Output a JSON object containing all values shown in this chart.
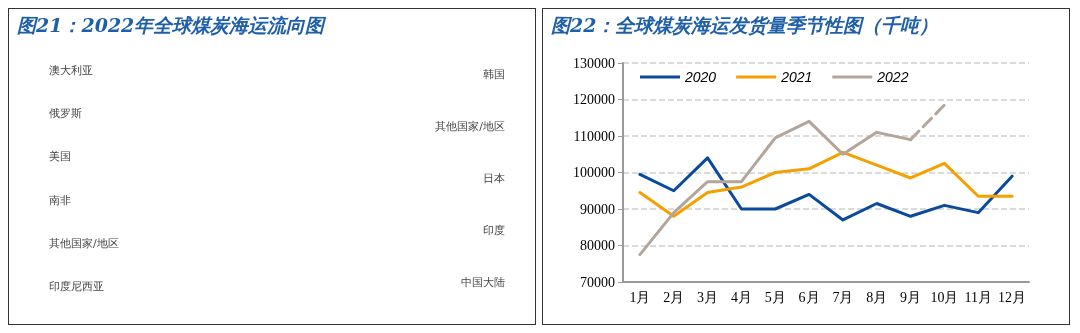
{
  "chart_data": [
    {
      "type": "other",
      "title": "图21：2022年全球煤炭海运流向图",
      "categories": [
        "澳大利亚",
        "俄罗斯",
        "美国",
        "南非",
        "其他国家/地区",
        "印度尼西亚"
      ],
      "y2_categories": [
        "韩国",
        "其他国家/地区",
        "日本",
        "印度",
        "中国大陆"
      ]
    },
    {
      "type": "line",
      "title": "图22：全球煤炭海运发货量季节性图（千吨）",
      "categories": [
        "1月",
        "2月",
        "3月",
        "4月",
        "5月",
        "6月",
        "7月",
        "8月",
        "9月",
        "10月",
        "11月",
        "12月"
      ],
      "series": [
        {
          "name": "2020",
          "color": "#0a4a9c",
          "values": [
            99500,
            95000,
            104000,
            90000,
            90000,
            94000,
            87000,
            91500,
            88000,
            91000,
            89000,
            99000
          ]
        },
        {
          "name": "2021",
          "color": "#f5a000",
          "values": [
            94500,
            88000,
            94500,
            96000,
            100000,
            101000,
            105500,
            102000,
            98500,
            102500,
            93500,
            93500
          ]
        },
        {
          "name": "2022",
          "color": "#b3a59b",
          "values": [
            77500,
            89000,
            97500,
            97500,
            109500,
            114000,
            105000,
            111000,
            109000,
            null,
            null,
            null
          ]
        },
        {
          "color": "#b3a59b",
          "line_style": "dashed",
          "values": [
            null,
            null,
            null,
            null,
            null,
            null,
            null,
            null,
            109000,
            118500,
            null,
            null
          ]
        }
      ],
      "ylim": [
        70000,
        130000
      ],
      "yticks": [
        70000,
        80000,
        90000,
        100000,
        110000,
        120000,
        130000
      ],
      "grid": "y",
      "legend": "top left",
      "marker": "none",
      "line_style": "solid"
    }
  ]
}
